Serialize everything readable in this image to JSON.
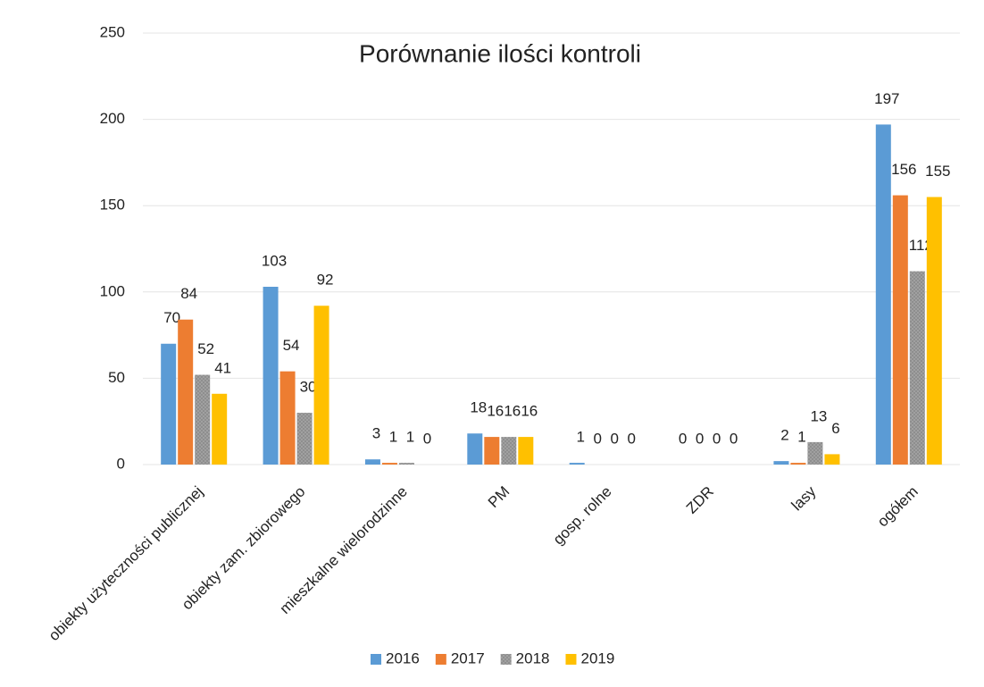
{
  "chart_data": {
    "type": "bar",
    "title": "Porównanie ilości kontroli",
    "categories": [
      "obiekty użyteczności publicznej",
      "obiekty zam. zbiorowego",
      "mieszkalne wielorodzinne",
      "PM",
      "gosp. rolne",
      "ZDR",
      "lasy",
      "ogółem"
    ],
    "series": [
      {
        "name": "2016",
        "color": "#5b9bd5",
        "values": [
          70,
          103,
          3,
          18,
          1,
          0,
          2,
          197
        ]
      },
      {
        "name": "2017",
        "color": "#ed7d31",
        "values": [
          84,
          54,
          1,
          16,
          0,
          0,
          1,
          156
        ]
      },
      {
        "name": "2018",
        "color": "#a5a5a5",
        "values": [
          52,
          30,
          1,
          16,
          0,
          0,
          13,
          112
        ]
      },
      {
        "name": "2019",
        "color": "#ffc000",
        "values": [
          41,
          92,
          0,
          16,
          0,
          0,
          6,
          155
        ]
      }
    ],
    "ylim": [
      0,
      250
    ],
    "yticks": [
      0,
      50,
      100,
      150,
      200,
      250
    ],
    "grid": true,
    "legend": "bottom"
  }
}
